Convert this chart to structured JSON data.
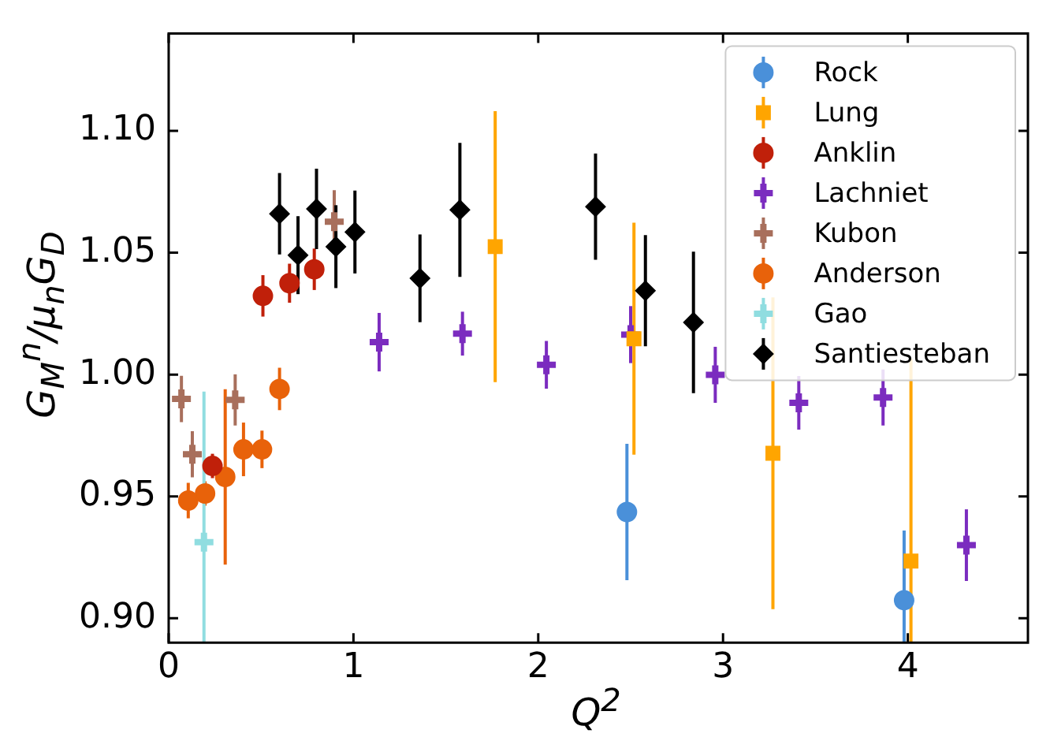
{
  "chart_data": {
    "type": "scatter",
    "xlabel": "Q$^{2}$",
    "ylabel": "G$_{M}$$^{n}$/μ$_{n}$G$_{D}$",
    "xlim": [
      0,
      4.65
    ],
    "ylim": [
      0.89,
      1.14
    ],
    "xticks": [
      0,
      1,
      2,
      3,
      4
    ],
    "yticks": [
      {
        "value": 0.9,
        "label": "0.90"
      },
      {
        "value": 0.95,
        "label": "0.95"
      },
      {
        "value": 1.0,
        "label": "1.00"
      },
      {
        "value": 1.05,
        "label": "1.05"
      },
      {
        "value": 1.1,
        "label": "1.10"
      }
    ],
    "legend": "top right",
    "grid": false,
    "series": [
      {
        "name": "Rock",
        "color": "#4a90d9",
        "marker": "circle",
        "x": [
          2.48,
          3.98
        ],
        "values": [
          0.9436,
          0.9074
        ],
        "errors": [
          0.028,
          [
            0.89,
            0.936
          ]
        ]
      },
      {
        "name": "Lung",
        "color": "#ffa500",
        "marker": "square",
        "x": [
          1.767,
          2.518,
          3.27,
          4.017
        ],
        "values": [
          1.0525,
          1.0147,
          0.9677,
          0.9235
        ],
        "errors": [
          0.0556,
          0.0476,
          0.064,
          [
            0.89,
            1.0065
          ]
        ]
      },
      {
        "name": "Anklin",
        "color": "#c0200a",
        "marker": "circle",
        "x": [
          0.237,
          0.51,
          0.654,
          0.788
        ],
        "values": [
          0.9625,
          1.0323,
          1.0375,
          1.0432
        ],
        "errors": [
          0.005,
          0.0085,
          0.008,
          0.0085
        ]
      },
      {
        "name": "Lachniet",
        "color": "#7b2cbf",
        "marker": "cross",
        "x": [
          1.139,
          1.59,
          2.044,
          2.5,
          2.958,
          3.41,
          3.866,
          4.317
        ],
        "values": [
          1.0133,
          1.0168,
          1.004,
          1.0164,
          0.9999,
          0.9884,
          0.9906,
          0.93
        ],
        "errors": [
          0.012,
          0.009,
          0.0098,
          0.0117,
          0.0115,
          0.011,
          0.0115,
          0.0147
        ]
      },
      {
        "name": "Kubon",
        "color": "#a86f5c",
        "marker": "cross",
        "x": [
          0.069,
          0.128,
          0.36,
          0.896
        ],
        "values": [
          0.99,
          0.9673,
          0.9896,
          1.0627
        ],
        "errors": [
          0.0095,
          0.0095,
          0.0105,
          0.013
        ]
      },
      {
        "name": "Anderson",
        "color": "#e8620a",
        "marker": "circle",
        "x": [
          0.106,
          0.197,
          0.306,
          0.405,
          0.505,
          0.6
        ],
        "values": [
          0.9483,
          0.9512,
          0.958,
          0.9693,
          0.9693,
          0.9941
        ],
        "errors": [
          0.0073,
          0.005,
          0.036,
          0.011,
          0.0077,
          0.0087
        ]
      },
      {
        "name": "Gao",
        "color": "#90dde0",
        "marker": "cross",
        "x": [
          0.191
        ],
        "values": [
          0.9312
        ],
        "errors": [
          [
            0.89,
            0.993
          ]
        ]
      },
      {
        "name": "Santiesteban",
        "color": "#000000",
        "marker": "diamond",
        "x": [
          0.6,
          0.7,
          0.8,
          0.905,
          1.008,
          1.36,
          1.576,
          2.31,
          2.58,
          2.84
        ],
        "values": [
          1.066,
          1.049,
          1.068,
          1.0525,
          1.0585,
          1.0395,
          1.0676,
          1.0689,
          1.0344,
          1.0214
        ],
        "errors": [
          0.0167,
          0.016,
          0.0165,
          0.017,
          0.017,
          0.018,
          0.0275,
          0.0218,
          0.0228,
          0.029
        ]
      }
    ]
  }
}
